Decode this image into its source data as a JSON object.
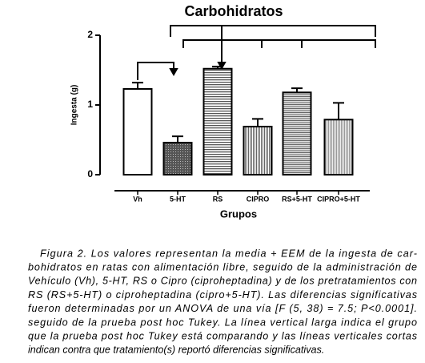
{
  "chart_data": {
    "type": "bar",
    "title": "Carbohidratos",
    "y_label": "Ingesta (g)",
    "x_label": "Grupos",
    "categories": [
      "Vh",
      "5-HT",
      "RS",
      "CIPRO",
      "RS+5-HT",
      "CIPRO+5-HT"
    ],
    "values": [
      1.23,
      0.46,
      1.52,
      0.69,
      1.18,
      0.79
    ],
    "errors": [
      0.09,
      0.09,
      0.03,
      0.11,
      0.06,
      0.24
    ],
    "ylim": [
      0,
      2
    ],
    "yticks": [
      0,
      1,
      2
    ]
  },
  "caption": {
    "lines": [
      "Figura 2. Los valores representan la media + EEM de la ingesta de car-",
      "bohidratos en ratas con alimentación libre, seguido de la administración de",
      "Vehículo (Vh), 5-HT, RS o Cipro (ciproheptadina) y de los pretratamientos con",
      "RS (RS+5-HT) o ciproheptadina (cipro+5-HT). Las diferencias significativas",
      "fueron determinadas por un ANOVA de una vía [F (5, 38) = 7.5; P<0.0001].",
      "seguido de la prueba post hoc Tukey. La línea vertical larga indica el grupo",
      "que la prueba post hoc Tukey está comparando y las líneas verticales cortas",
      "indican contra que tratamiento(s) reportó diferencias significativas."
    ]
  }
}
